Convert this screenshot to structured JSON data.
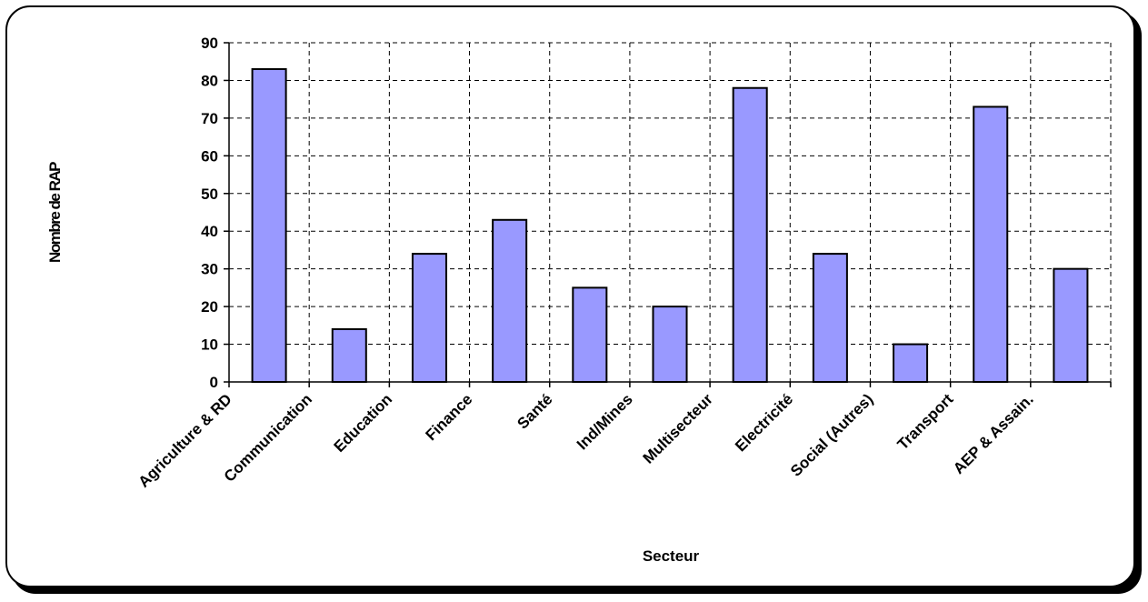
{
  "chart_data": {
    "type": "bar",
    "categories": [
      "Agriculture & RD",
      "Communication",
      "Education",
      "Finance",
      "Santé",
      "Ind/Mines",
      "Multisecteur",
      "Electricité",
      "Social (Autres)",
      "Transport",
      "AEP & Assain."
    ],
    "values": [
      83,
      14,
      34,
      43,
      25,
      20,
      78,
      34,
      10,
      73,
      30
    ],
    "xlabel": "Secteur",
    "ylabel": "Nombre de RAP",
    "ylim": [
      0,
      90
    ],
    "yticks": [
      0,
      10,
      20,
      30,
      40,
      50,
      60,
      70,
      80,
      90
    ],
    "grid": true,
    "bar_color": "#9999ff",
    "bar_edge_color": "#000000"
  }
}
